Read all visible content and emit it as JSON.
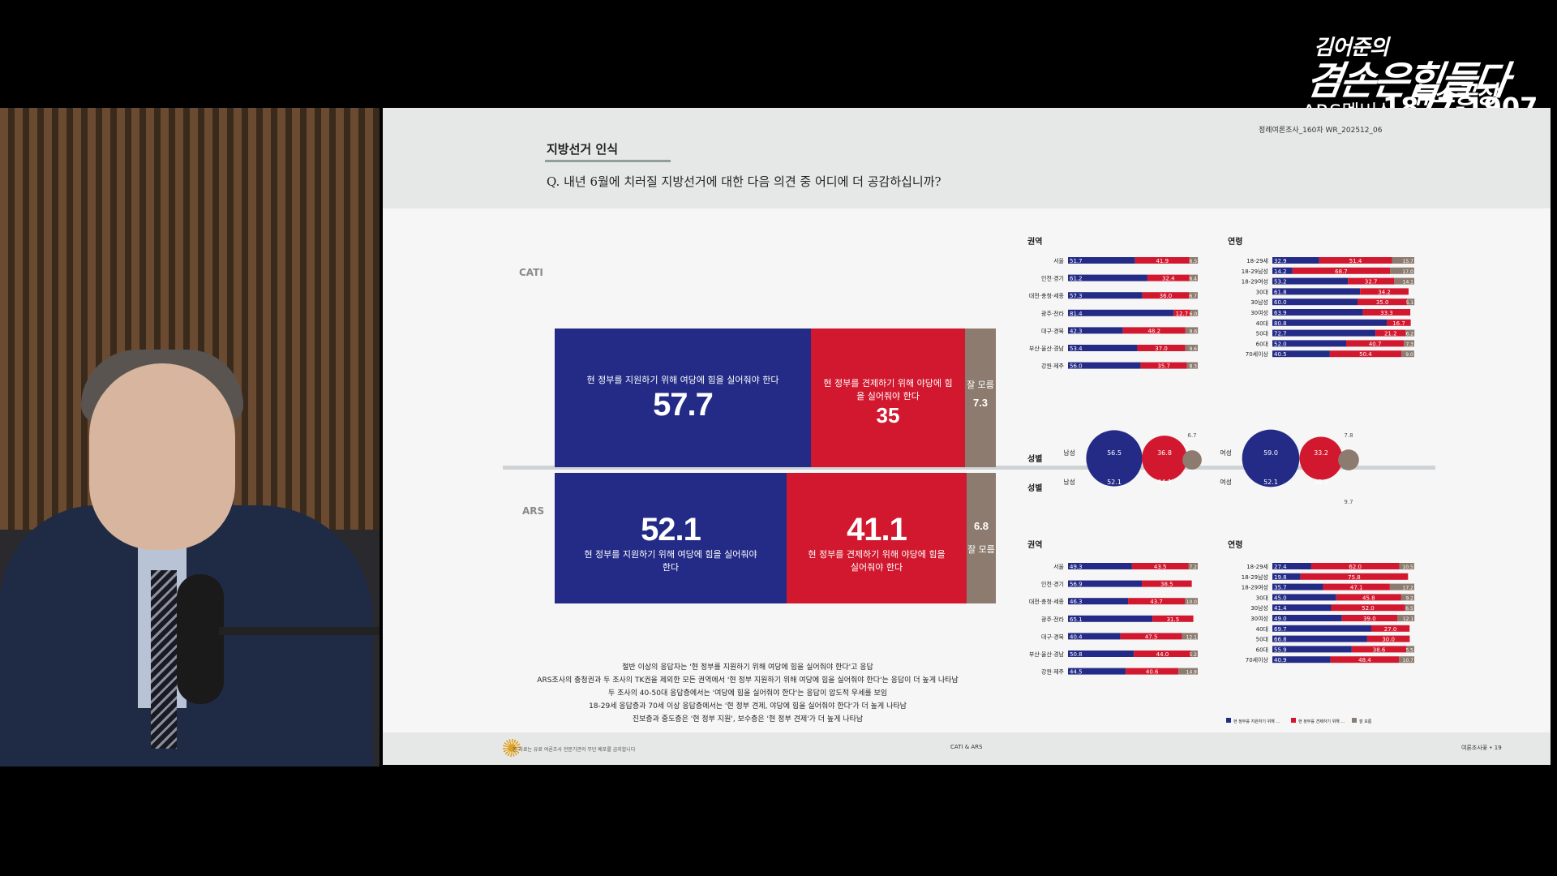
{
  "logo": {
    "line1": "김어준의",
    "line2": "겸손은힘들다",
    "line3": "뉴스공장",
    "membership": "ARS멤버십",
    "number": "1877-1907"
  },
  "slide": {
    "topic": "지방선거 인식",
    "question": "Q. 내년 6월에 치러질 지방선거에 대한 다음 의견 중 어디에 더 공감하십니까?",
    "header_right": "정례여론조사_160차   WR_202512_06",
    "footer_left": "본 자료는 유료 여론조사 전문기관의 무단 배포를 금지합니다",
    "footer_center": "CATI & ARS",
    "footer_right": "여론조사꽃 • 19",
    "notes": [
      "절반 이상의 응답자는 '현 정부를 지원하기 위해 여당에 힘을 실어줘야 한다'고 응답",
      "ARS조사의 충청권과 두 조사의 TK권을 제외한 모든 권역에서 '현 정부 지원하기 위해 여당에 힘을 실어줘야 한다'는 응답이 더 높게 나타남",
      "두 조사의 40-50대 응답층에서는 '여당에 힘을 실어줘야 한다'는 응답이 압도적 우세를 보임",
      "18-29세 응답층과 70세 이상 응답층에서는 '현 정부 견제, 야당에 힘을 실어줘야 한다'가 더 높게 나타남",
      "진보층과 중도층은 '현 정부 지원', 보수층은 '현 정부 견제'가 더 높게 나타남"
    ]
  },
  "colors": {
    "blue": "#232b86",
    "red": "#d2182e",
    "grey": "#8c7b6e"
  },
  "chart_data": [
    {
      "type": "bar",
      "title": "CATI",
      "categories": [
        "현 정부를 지원하기 위해 여당에 힘을 실어줘야 한다",
        "현 정부를 견제하기 위해 야당에 힘을 실어줘야 한다",
        "잘 모름"
      ],
      "values": [
        57.7,
        35.0,
        7.3
      ]
    },
    {
      "type": "bar",
      "title": "ARS",
      "categories": [
        "현 정부를 지원하기 위해 여당에 힘을 실어줘야 한다",
        "현 정부를 견제하기 위해 야당에 힘을 실어줘야 한다",
        "잘 모름"
      ],
      "values": [
        52.1,
        41.1,
        6.8
      ]
    },
    {
      "type": "bar",
      "title": "권역",
      "survey": "CATI",
      "categories": [
        "서울",
        "인천·경기",
        "대전·충청·세종",
        "광주·전라",
        "대구·경북",
        "부산·울산·경남",
        "강원·제주"
      ],
      "series": [
        {
          "values": [
            51.7,
            61.2,
            57.3,
            81.4,
            42.3,
            53.4,
            56.0
          ]
        },
        {
          "values": [
            41.9,
            32.4,
            36.0,
            12.7,
            48.2,
            37.0,
            35.7
          ]
        },
        {
          "values": [
            6.5,
            6.4,
            6.7,
            6.0,
            9.6,
            9.6,
            8.3
          ]
        }
      ]
    },
    {
      "type": "bar",
      "title": "연령",
      "survey": "CATI",
      "categories": [
        "18-29세",
        "18-29남성",
        "18-29여성",
        "30대",
        "30남성",
        "30여성",
        "40대",
        "50대",
        "60대",
        "70세이상"
      ],
      "series": [
        {
          "values": [
            32.9,
            14.2,
            53.2,
            61.8,
            60.0,
            63.9,
            80.8,
            72.7,
            52.0,
            40.5
          ]
        },
        {
          "values": [
            51.4,
            68.7,
            32.7,
            34.2,
            35.0,
            33.3,
            16.7,
            21.2,
            40.7,
            50.4
          ]
        },
        {
          "values": [
            15.7,
            17.0,
            14.1,
            null,
            5.1,
            null,
            null,
            6.2,
            7.3,
            9.0
          ]
        }
      ]
    },
    {
      "type": "bar",
      "title": "권역",
      "survey": "ARS",
      "categories": [
        "서울",
        "인천·경기",
        "대전·충청·세종",
        "광주·전라",
        "대구·경북",
        "부산·울산·경남",
        "강원·제주"
      ],
      "series": [
        {
          "values": [
            49.3,
            56.9,
            46.3,
            65.1,
            40.4,
            50.8,
            44.5
          ]
        },
        {
          "values": [
            43.5,
            38.5,
            43.7,
            31.5,
            47.5,
            44.0,
            40.6
          ]
        },
        {
          "values": [
            7.2,
            null,
            10.0,
            null,
            12.1,
            5.2,
            14.9
          ]
        }
      ]
    },
    {
      "type": "bar",
      "title": "연령",
      "survey": "ARS",
      "categories": [
        "18-29세",
        "18-29남성",
        "18-29여성",
        "30대",
        "30남성",
        "30여성",
        "40대",
        "50대",
        "60대",
        "70세이상"
      ],
      "series": [
        {
          "values": [
            27.4,
            19.8,
            35.7,
            45.0,
            41.4,
            49.0,
            69.7,
            66.8,
            55.9,
            40.9
          ]
        },
        {
          "values": [
            62.0,
            75.8,
            47.1,
            45.8,
            52.0,
            39.0,
            27.0,
            30.0,
            38.6,
            48.4
          ]
        },
        {
          "values": [
            10.5,
            null,
            17.2,
            9.2,
            6.5,
            12.1,
            null,
            null,
            5.5,
            10.7
          ]
        }
      ]
    },
    {
      "type": "scatter",
      "title": "성별",
      "categories": [
        "남성 CATI",
        "남성 ARS",
        "여성 CATI",
        "여성 ARS"
      ],
      "series": [
        {
          "values": [
            56.5,
            52.1,
            59.0,
            52.1
          ]
        },
        {
          "values": [
            36.8,
            44.1,
            33.2,
            38.2
          ]
        },
        {
          "values": [
            6.7,
            null,
            7.8,
            9.7
          ]
        }
      ]
    }
  ],
  "labels": {
    "region": "권역",
    "age": "연령",
    "gender": "성별",
    "male": "남성",
    "female": "여성",
    "dunno": "잘 모름",
    "legend": [
      "현 정부를 지원하기 위해 여당에 힘을 실어줘야 한다",
      "현 정부를 견제하기 위해 야당에 힘을 실어줘야 한다",
      "잘 모름"
    ]
  }
}
